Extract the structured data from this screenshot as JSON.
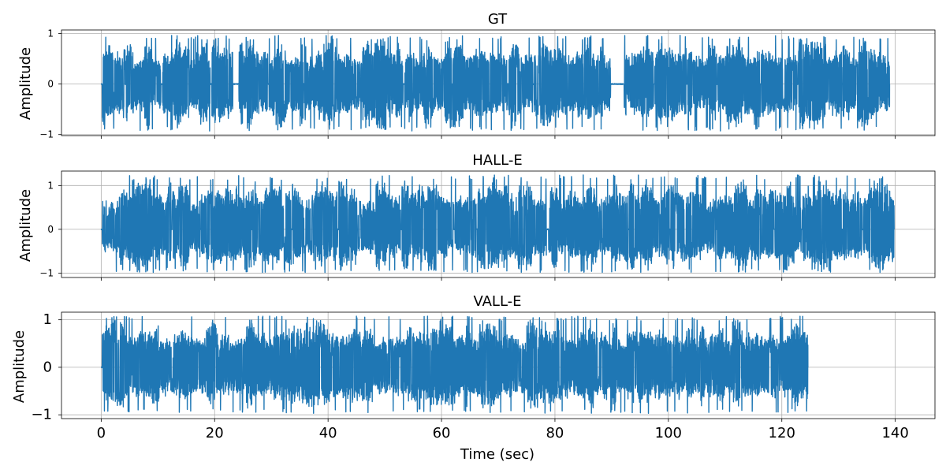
{
  "chart_data": [
    {
      "type": "line",
      "title": "GT",
      "xlabel": "",
      "ylabel": "Amplitude",
      "xlim": [
        -7,
        147
      ],
      "ylim": [
        -1.02,
        1.07
      ],
      "xticks": [
        0,
        20,
        40,
        60,
        80,
        100,
        120,
        140
      ],
      "yticks": [
        -1,
        0,
        1
      ],
      "ytick_labels": [
        "−1",
        "0",
        "1"
      ],
      "x_tick_labels_shown": false,
      "grid": true,
      "color": "#1f77b4",
      "signal": {
        "duration_sec": 139,
        "envelope_max": 0.97,
        "envelope_min": -0.93,
        "silences_sec": [
          [
            0,
            0.2
          ],
          [
            4.2,
            4.4
          ],
          [
            10.5,
            10.8
          ],
          [
            19.2,
            19.5
          ],
          [
            23.2,
            24.3
          ],
          [
            29.4,
            29.6
          ],
          [
            35.6,
            35.8
          ],
          [
            53.2,
            53.5
          ],
          [
            61.8,
            62.0
          ],
          [
            71.6,
            71.8
          ],
          [
            76.1,
            76.3
          ],
          [
            89.8,
            92.2
          ],
          [
            97.4,
            97.6
          ],
          [
            103.2,
            103.4
          ],
          [
            108.5,
            108.7
          ],
          [
            116.2,
            116.4
          ],
          [
            122.7,
            122.9
          ],
          [
            130.6,
            130.8
          ]
        ]
      }
    },
    {
      "type": "line",
      "title": "HALL-E",
      "xlabel": "",
      "ylabel": "Amplitude",
      "xlim": [
        -7,
        147
      ],
      "ylim": [
        -1.1,
        1.33
      ],
      "xticks": [
        0,
        20,
        40,
        60,
        80,
        100,
        120,
        140
      ],
      "yticks": [
        -1,
        0,
        1
      ],
      "ytick_labels": [
        "−1",
        "0",
        "1"
      ],
      "x_tick_labels_shown": false,
      "grid": true,
      "color": "#1f77b4",
      "signal": {
        "duration_sec": 139.8,
        "envelope_max": 1.24,
        "envelope_min": -0.99,
        "silences_sec": [
          [
            0,
            0.2
          ],
          [
            12.3,
            12.5
          ],
          [
            17.4,
            17.6
          ],
          [
            26.5,
            26.7
          ],
          [
            33.5,
            33.7
          ],
          [
            41.7,
            41.9
          ],
          [
            45.1,
            45.3
          ],
          [
            52.8,
            53.0
          ],
          [
            62.2,
            62.4
          ],
          [
            66.1,
            66.3
          ],
          [
            78.5,
            78.9
          ],
          [
            92.9,
            93.1
          ],
          [
            100.2,
            100.4
          ],
          [
            108.4,
            108.6
          ],
          [
            118.6,
            118.8
          ],
          [
            123.4,
            123.6
          ],
          [
            130.6,
            130.8
          ],
          [
            134.2,
            134.4
          ]
        ]
      }
    },
    {
      "type": "line",
      "title": "VALL-E",
      "xlabel": "Time (sec)",
      "ylabel": "Amplitude",
      "xlim": [
        -7,
        147
      ],
      "ylim": [
        -1.08,
        1.16
      ],
      "xticks": [
        0,
        20,
        40,
        60,
        80,
        100,
        120,
        140
      ],
      "yticks": [
        -1,
        0,
        1
      ],
      "ytick_labels": [
        "−1",
        "0",
        "1"
      ],
      "x_tick_labels_shown": true,
      "grid": true,
      "color": "#1f77b4",
      "signal": {
        "duration_sec": 124.6,
        "envelope_max": 1.08,
        "envelope_min": -0.97,
        "silences_sec": [
          [
            0,
            0.2
          ]
        ]
      }
    }
  ]
}
